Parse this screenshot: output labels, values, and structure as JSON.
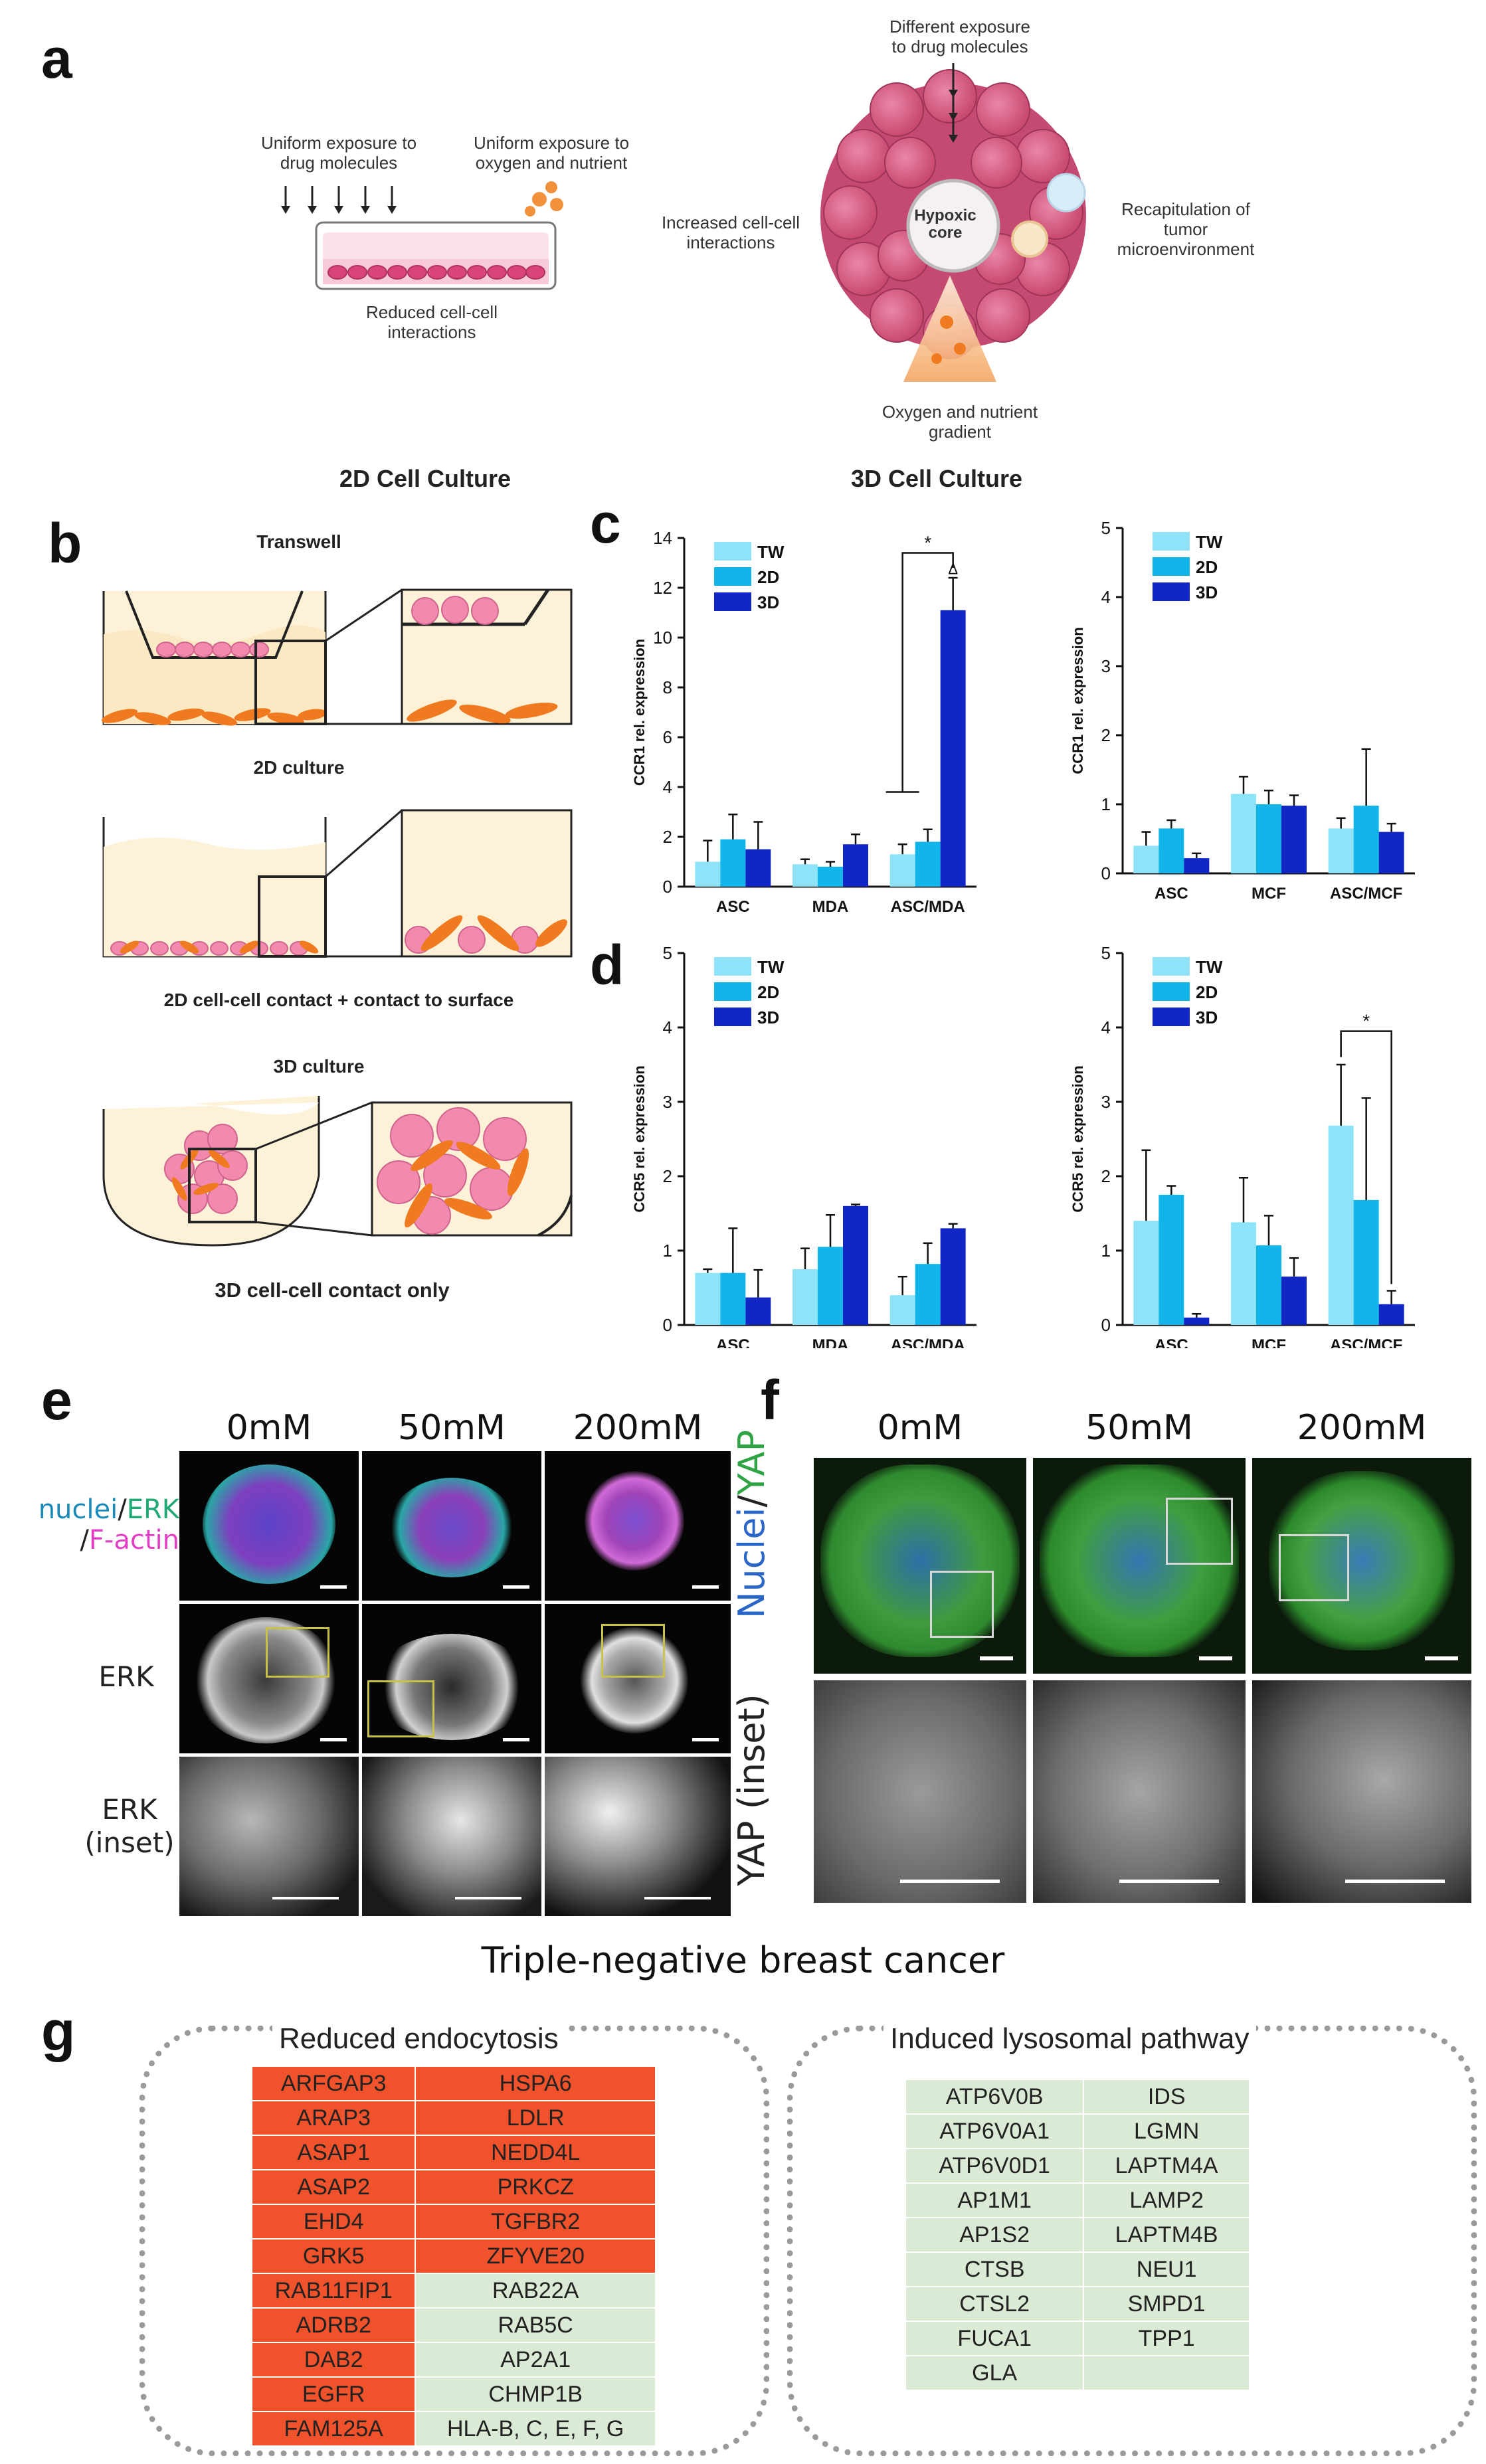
{
  "panels": {
    "a": "a",
    "b": "b",
    "c": "c",
    "d": "d",
    "e": "e",
    "f": "f",
    "g": "g"
  },
  "panel_a": {
    "uniform_drug": "Uniform exposure to\ndrug molecules",
    "uniform_oxygen": "Uniform exposure to\noxygen and nutrient",
    "reduced_interactions": "Reduced cell-cell\ninteractions",
    "different_exposure": "Different exposure\nto drug molecules",
    "increased_interactions": "Increased cell-cell\ninteractions",
    "hypoxic_core": "Hypoxic\ncore",
    "recapitulation": "Recapitulation of\ntumor\nmicroenvironment",
    "oxygen_gradient": "Oxygen and nutrient\ngradient",
    "title_2d": "2D Cell Culture",
    "title_3d": "3D Cell Culture"
  },
  "panel_b": {
    "transwell": "Transwell",
    "culture_2d": "2D culture",
    "contact_2d": "2D cell-cell contact + contact to surface",
    "culture_3d": "3D culture",
    "contact_3d": "3D cell-cell contact only"
  },
  "chart_data": [
    {
      "id": "c-left",
      "type": "bar",
      "categories": [
        "ASC",
        "MDA",
        "ASC/MDA"
      ],
      "ylabel": "CCR1 rel. expression",
      "ylim": [
        0,
        14
      ],
      "yticks": [
        0,
        2,
        4,
        6,
        8,
        10,
        12,
        14
      ],
      "series": [
        {
          "name": "TW",
          "values": [
            1.0,
            0.9,
            1.3
          ],
          "err": [
            0.85,
            0.2,
            0.4
          ]
        },
        {
          "name": "2D",
          "values": [
            1.9,
            0.8,
            1.8
          ],
          "err": [
            1.0,
            0.2,
            0.5
          ]
        },
        {
          "name": "3D",
          "values": [
            1.5,
            1.7,
            11.1
          ],
          "err": [
            1.1,
            0.4,
            1.3
          ]
        }
      ],
      "annotations": [
        "*",
        "Δ"
      ]
    },
    {
      "id": "c-right",
      "type": "bar",
      "categories": [
        "ASC",
        "MCF",
        "ASC/MCF"
      ],
      "ylabel": "CCR1 rel. expression",
      "ylim": [
        0,
        5
      ],
      "yticks": [
        0,
        1,
        2,
        3,
        4,
        5
      ],
      "series": [
        {
          "name": "TW",
          "values": [
            0.4,
            1.15,
            0.65
          ],
          "err": [
            0.2,
            0.25,
            0.15
          ]
        },
        {
          "name": "2D",
          "values": [
            0.65,
            1.0,
            0.98
          ],
          "err": [
            0.12,
            0.2,
            0.82
          ]
        },
        {
          "name": "3D",
          "values": [
            0.22,
            0.98,
            0.6
          ],
          "err": [
            0.07,
            0.15,
            0.12
          ]
        }
      ],
      "annotations": []
    },
    {
      "id": "d-left",
      "type": "bar",
      "categories": [
        "ASC",
        "MDA",
        "ASC/MDA"
      ],
      "ylabel": "CCR5 rel. expression",
      "ylim": [
        0,
        5
      ],
      "yticks": [
        0,
        1,
        2,
        3,
        4,
        5
      ],
      "series": [
        {
          "name": "TW",
          "values": [
            0.7,
            0.75,
            0.4
          ],
          "err": [
            0.05,
            0.28,
            0.25
          ]
        },
        {
          "name": "2D",
          "values": [
            0.7,
            1.05,
            0.82
          ],
          "err": [
            0.6,
            0.43,
            0.28
          ]
        },
        {
          "name": "3D",
          "values": [
            0.37,
            1.6,
            1.3
          ],
          "err": [
            0.37,
            0.02,
            0.06
          ]
        }
      ],
      "annotations": []
    },
    {
      "id": "d-right",
      "type": "bar",
      "categories": [
        "ASC",
        "MCF",
        "ASC/MCF"
      ],
      "ylabel": "CCR5 rel. expression",
      "ylim": [
        0,
        5
      ],
      "yticks": [
        0,
        1,
        2,
        3,
        4,
        5
      ],
      "series": [
        {
          "name": "TW",
          "values": [
            1.4,
            1.38,
            2.68
          ],
          "err": [
            0.95,
            0.6,
            0.82
          ]
        },
        {
          "name": "2D",
          "values": [
            1.75,
            1.07,
            1.68
          ],
          "err": [
            0.12,
            0.4,
            1.37
          ]
        },
        {
          "name": "3D",
          "values": [
            0.1,
            0.65,
            0.28
          ],
          "err": [
            0.05,
            0.25,
            0.18
          ]
        }
      ],
      "annotations": [
        "*"
      ]
    }
  ],
  "colors": {
    "TW": "#8ee3f8",
    "2D": "#11b5ea",
    "3D": "#1027c6"
  },
  "panel_e": {
    "col_labels": [
      "0mM",
      "50mM",
      "200mM"
    ],
    "row_stain": {
      "nuclei": "nuclei",
      "slash1": "/",
      "erk": "ERK",
      "slash2": "/",
      "factin": "F-actin"
    },
    "row_erk": "ERK",
    "row_inset": "ERK\n(inset)"
  },
  "panel_f": {
    "col_labels": [
      "0mM",
      "50mM",
      "200mM"
    ],
    "row_nuclei": "Nuclei",
    "slash": "/",
    "row_yap": "YAP",
    "row_inset": "YAP (inset)"
  },
  "caption_tnbc": "Triple-negative breast cancer",
  "panel_g": {
    "left_title": "Reduced endocytosis",
    "right_title": "Induced lysosomal pathway",
    "left_rows": [
      [
        "ARFGAP3",
        "HSPA6"
      ],
      [
        "ARAP3",
        "LDLR"
      ],
      [
        "ASAP1",
        "NEDD4L"
      ],
      [
        "ASAP2",
        "PRKCZ"
      ],
      [
        "EHD4",
        "TGFBR2"
      ],
      [
        "GRK5",
        "ZFYVE20"
      ],
      [
        "RAB11FIP1",
        "RAB22A"
      ],
      [
        "ADRB2",
        "RAB5C"
      ],
      [
        "DAB2",
        "AP2A1"
      ],
      [
        "EGFR",
        "CHMP1B"
      ],
      [
        "FAM125A",
        "HLA-B, C, E, F, G"
      ]
    ],
    "right_rows": [
      [
        "ATP6V0B",
        "IDS"
      ],
      [
        "ATP6V0A1",
        "LGMN"
      ],
      [
        "ATP6V0D1",
        "LAPTM4A"
      ],
      [
        "AP1M1",
        "LAMP2"
      ],
      [
        "AP1S2",
        "LAPTM4B"
      ],
      [
        "CTSB",
        "NEU1"
      ],
      [
        "CTSL2",
        "SMPD1"
      ],
      [
        "FUCA1",
        "TPP1"
      ],
      [
        "GLA",
        ""
      ]
    ]
  }
}
